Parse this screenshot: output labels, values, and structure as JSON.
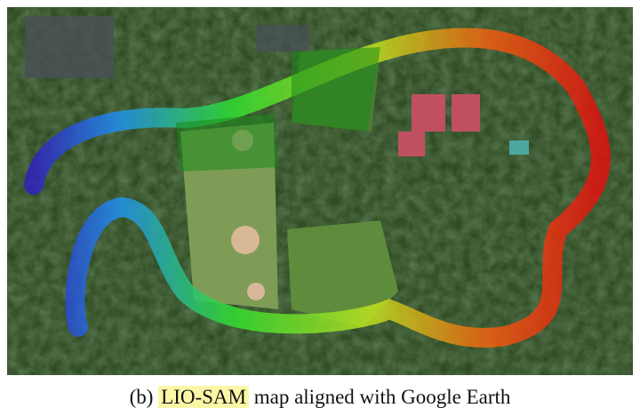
{
  "figure": {
    "content": "satellite-image-with-point-cloud-overlay",
    "colors": {
      "low": "#3020c0",
      "mid_low": "#20b0f0",
      "mid": "#30e030",
      "mid_high": "#f0e020",
      "high": "#e01010",
      "vegetation": "#2e4a22"
    }
  },
  "caption": {
    "label": "(b)",
    "highlight": "LIO-SAM",
    "rest": "map aligned with Google Earth",
    "highlight_color": "#fbf7a8"
  }
}
